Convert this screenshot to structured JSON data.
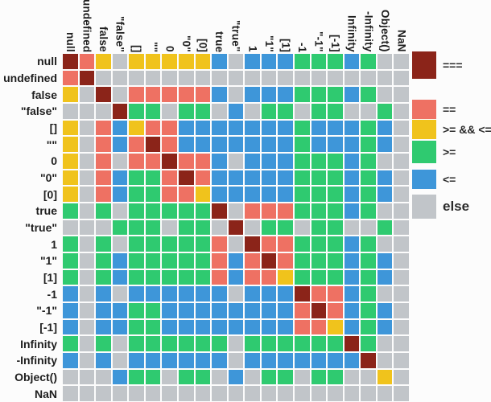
{
  "chart_data": {
    "type": "heatmap",
    "title": "",
    "x_labels": [
      "null",
      "undefined",
      "false",
      "\"false\"",
      "[]",
      "\"\"",
      "0",
      "\"0\"",
      "[0]",
      "true",
      "\"true\"",
      "1",
      "\"1\"",
      "[1]",
      "-1",
      "\"-1\"",
      "[-1]",
      "Infinity",
      "-Infinity",
      "Object()",
      "NaN"
    ],
    "y_labels": [
      "null",
      "undefined",
      "false",
      "\"false\"",
      "[]",
      "\"\"",
      "0",
      "\"0\"",
      "[0]",
      "true",
      "\"true\"",
      "1",
      "\"1\"",
      "[1]",
      "-1",
      "\"-1\"",
      "[-1]",
      "Infinity",
      "-Infinity",
      "Object()",
      "NaN"
    ],
    "cell_code_meaning": {
      "E": "===",
      "Q": "==",
      "Y": ">= && <=",
      "G": ">=",
      "B": "<=",
      "X": "else"
    },
    "matrix": [
      "EQYXYYYYYBXBBBGGGBGXX",
      "QEXXXXXXXXXXXXXXXXXXX",
      "YXEXQQQQQBXBBBGGGBGXX",
      "XXXEGGXGGXBXGGXGGXXGX",
      "YXQBYQQBBBBBBBGBBBGBX",
      "YXQBQEQBBBBBBBGBBBGBX",
      "YXQXQQEQQBXBBBGGGBGXX",
      "YXQBGGQEQBBBBBGGGBGBX",
      "YXQBGGQQYBBBBBGGGBGBX",
      "GXGXGGGGGEXQQQGGGBGXX",
      "XXXGGGXGGXEXGGXGGXXGX",
      "GXGXGGGGGQXEQQGGGBGXX",
      "GXGBGGGGGQBQEQGGGBGBX",
      "GXGBGGGGGQBQQYGGGBGBX",
      "BXBXBBBBBBXBBBEQQBGXX",
      "BXBBGGBBBBBBBBQEQBGBX",
      "BXBBGGBBBBBBBBQQYBGBX",
      "GXGXGGGGGGXGGGGGGEGXX",
      "BXBXBBBBBBXBBBBBBBEXX",
      "XXXBGGXGGXBXGGXGGXXYX",
      "XXXXXXXXXXXXXXXXXXXXX"
    ],
    "legend_position": "right",
    "legend": [
      {
        "label": "===",
        "key": "E"
      },
      {
        "label": "==",
        "key": "Q"
      },
      {
        "label": ">= && <=",
        "key": "Y"
      },
      {
        "label": ">=",
        "key": "G"
      },
      {
        "label": "<=",
        "key": "B"
      },
      {
        "label": "else",
        "key": "X"
      }
    ],
    "colors": {
      "E": "#8b2419",
      "Q": "#ee7163",
      "Y": "#f0c31c",
      "G": "#2fca70",
      "B": "#3e96d9",
      "X": "#c1c5c9"
    }
  }
}
